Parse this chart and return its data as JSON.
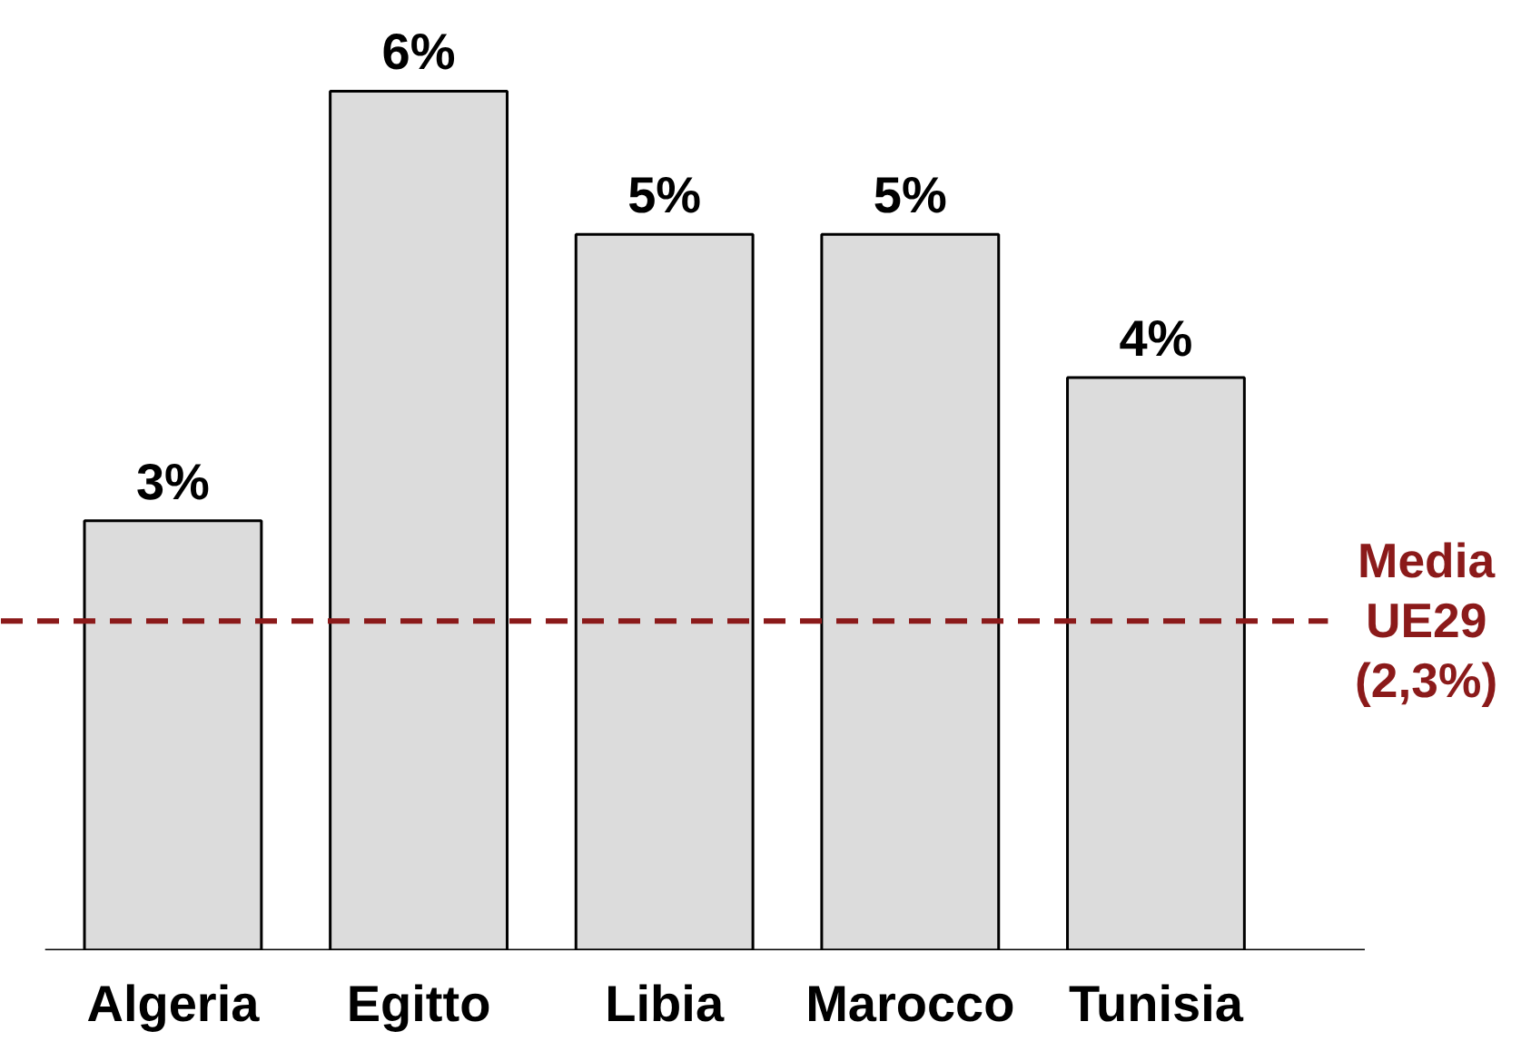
{
  "chart_data": {
    "type": "bar",
    "categories": [
      "Algeria",
      "Egitto",
      "Libia",
      "Marocco",
      "Tunisia"
    ],
    "values": [
      3,
      6,
      5,
      5,
      4
    ],
    "color": "#dcdcdc",
    "data_labels": true,
    "value_labels": [
      "3%",
      "6%",
      "5%",
      "5%",
      "4%"
    ],
    "ref_lines": [
      {
        "axis": "y",
        "value": 2.3,
        "label": "Media\nUE29\n(2,3%)",
        "color": "#8b1a1a",
        "line_style": "dashed"
      }
    ],
    "grid": false
  }
}
